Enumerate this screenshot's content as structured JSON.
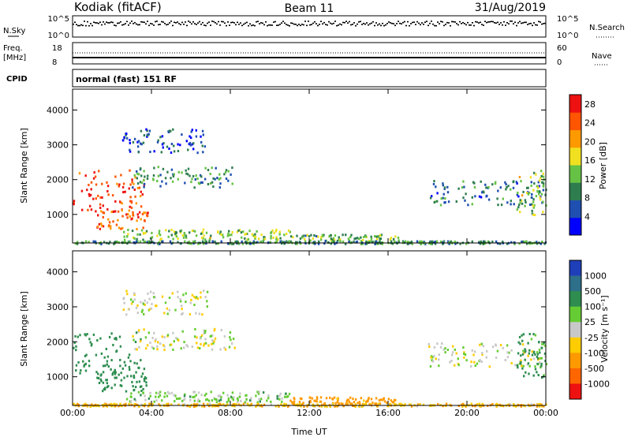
{
  "header": {
    "site": "Kodiak (fitACF)",
    "beam": "Beam 11",
    "date": "31/Aug/2019"
  },
  "strip": {
    "nsky_label": "N.Sky",
    "nsky_ticks": [
      "10^5",
      "10^0"
    ],
    "nsearch_label": "N.Search",
    "nsearch_ticks": [
      "10^5",
      "10^0"
    ],
    "freq_label": "Freq.",
    "freq_unit": "[MHz]",
    "freq_ticks": [
      "18",
      "8"
    ],
    "nave_label": "Nave",
    "nave_ticks": [
      "60",
      "0"
    ],
    "cpid_label": "CPID",
    "cpid_text": "normal (fast) 151 RF"
  },
  "colors": {
    "power_scale": [
      "#0000ff",
      "#1f4fb0",
      "#2e7d4f",
      "#66c244",
      "#f0e020",
      "#ff9900",
      "#ff5500",
      "#ee1111"
    ],
    "velocity_scale": [
      "#1f3fb8",
      "#2e6f8a",
      "#2e8d4f",
      "#66cc33",
      "#c8c8c8",
      "#ffcc00",
      "#ff9900",
      "#ff6600",
      "#ee1111"
    ]
  },
  "chart_data": [
    {
      "type": "heatmap",
      "name": "power",
      "ylabel": "Slant Range [km]",
      "xlabel": "",
      "x_ticks": [
        "00:00",
        "04:00",
        "08:00",
        "12:00",
        "16:00",
        "20:00",
        "00:00"
      ],
      "xlim_hours": [
        0,
        24
      ],
      "y_ticks": [
        1000,
        2000,
        3000,
        4000
      ],
      "ylim": [
        180,
        4600
      ],
      "colorbar": {
        "label": "Power [dB]",
        "ticks": [
          "4",
          "8",
          "12",
          "16",
          "20",
          "24",
          "28"
        ],
        "range": [
          0,
          30
        ]
      },
      "regions": [
        {
          "t0": 0.0,
          "t1": 3.6,
          "r0": 1000,
          "r1": 2300,
          "level": 26
        },
        {
          "t0": 1.2,
          "t1": 3.8,
          "r0": 600,
          "r1": 1200,
          "level": 24
        },
        {
          "t0": 2.5,
          "t1": 11.0,
          "r0": 300,
          "r1": 600,
          "level": 14
        },
        {
          "t0": 3.0,
          "t1": 8.2,
          "r0": 1800,
          "r1": 2400,
          "level": 10
        },
        {
          "t0": 2.5,
          "t1": 6.8,
          "r0": 2800,
          "r1": 3500,
          "level": 6
        },
        {
          "t0": 11.0,
          "t1": 16.5,
          "r0": 250,
          "r1": 450,
          "level": 12
        },
        {
          "t0": 18.0,
          "t1": 24.0,
          "r0": 1300,
          "r1": 2000,
          "level": 8
        },
        {
          "t0": 22.5,
          "t1": 24.0,
          "r0": 1000,
          "r1": 2300,
          "level": 14
        },
        {
          "t0": 0.0,
          "t1": 24.0,
          "r0": 180,
          "r1": 260,
          "level": 10
        }
      ]
    },
    {
      "type": "heatmap",
      "name": "velocity",
      "ylabel": "Slant Range [km]",
      "xlabel": "Time UT",
      "x_ticks": [
        "00:00",
        "04:00",
        "08:00",
        "12:00",
        "16:00",
        "20:00",
        "00:00"
      ],
      "xlim_hours": [
        0,
        24
      ],
      "y_ticks": [
        1000,
        2000,
        3000,
        4000
      ],
      "ylim": [
        180,
        4600
      ],
      "colorbar": {
        "label": "Velocity [m s⁻¹]",
        "ticks": [
          "1000",
          "500",
          "100",
          "25",
          "-25",
          "-100",
          "-500",
          "-1000"
        ]
      },
      "regions": [
        {
          "t0": 0.0,
          "t1": 3.6,
          "r0": 1000,
          "r1": 2300,
          "v": 300
        },
        {
          "t0": 1.2,
          "t1": 3.8,
          "r0": 600,
          "r1": 1200,
          "v": 200
        },
        {
          "t0": 2.5,
          "t1": 11.0,
          "r0": 300,
          "r1": 600,
          "v": 50
        },
        {
          "t0": 3.0,
          "t1": 8.2,
          "r0": 1800,
          "r1": 2400,
          "v": 0
        },
        {
          "t0": 2.5,
          "t1": 6.8,
          "r0": 2800,
          "r1": 3500,
          "v": 0
        },
        {
          "t0": 11.0,
          "t1": 16.5,
          "r0": 250,
          "r1": 450,
          "v": -150
        },
        {
          "t0": 18.0,
          "t1": 24.0,
          "r0": 1300,
          "r1": 2000,
          "v": 0
        },
        {
          "t0": 22.5,
          "t1": 24.0,
          "r0": 1000,
          "r1": 2300,
          "v": 150
        },
        {
          "t0": 0.0,
          "t1": 24.0,
          "r0": 180,
          "r1": 260,
          "v": -80
        }
      ]
    }
  ]
}
